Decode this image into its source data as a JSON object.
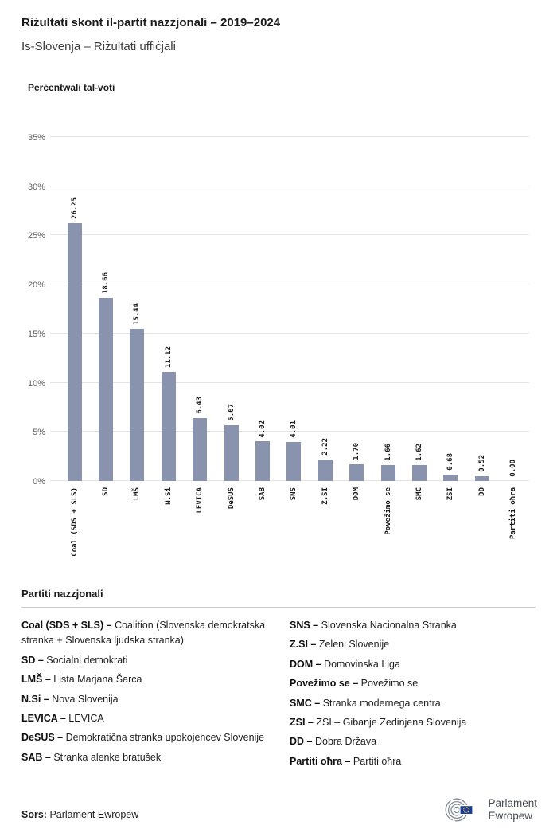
{
  "header": {
    "title": "Riżultati skont il-partit nazzjonali – 2019–2024",
    "subtitle": "Is-Slovenja – Riżultati uffiċjali"
  },
  "chart_data": {
    "type": "bar",
    "title": "Perċentwali tal-voti",
    "categories": [
      "Coal (SDS + SLS)",
      "SD",
      "LMŠ",
      "N.Si",
      "LEVICA",
      "DeSUS",
      "SAB",
      "SNS",
      "Z.SI",
      "DOM",
      "Povežimo se",
      "SMC",
      "ZSI",
      "DD",
      "Partiti oħra"
    ],
    "values": [
      26.25,
      18.66,
      15.44,
      11.12,
      6.43,
      5.67,
      4.02,
      4.01,
      2.22,
      1.7,
      1.66,
      1.62,
      0.68,
      0.52,
      0.0
    ],
    "value_labels": [
      "26.25",
      "18.66",
      "15.44",
      "11.12",
      "6.43",
      "5.67",
      "4.02",
      "4.01",
      "2.22",
      "1.70",
      "1.66",
      "1.62",
      "0.68",
      "0.52",
      "0.00"
    ],
    "ylim": [
      0,
      35
    ],
    "ytick_step": 5,
    "ytick_labels": [
      "0%",
      "5%",
      "10%",
      "15%",
      "20%",
      "25%",
      "30%",
      "35%"
    ],
    "grid": true,
    "legend_position": "none",
    "bar_color": "#8a93ad"
  },
  "legend": {
    "title": "Partiti nazzjonali",
    "columns": [
      [
        {
          "abbr": "Coal (SDS + SLS) –",
          "name": "Coalition (Slovenska demokratska stranka + Slovenska ljudska stranka)"
        },
        {
          "abbr": "SD –",
          "name": "Socialni demokrati"
        },
        {
          "abbr": "LMŠ –",
          "name": "Lista Marjana Šarca"
        },
        {
          "abbr": "N.Si –",
          "name": "Nova Slovenija"
        },
        {
          "abbr": "LEVICA –",
          "name": "LEVICA"
        },
        {
          "abbr": "DeSUS –",
          "name": "Demokratična stranka upokojencev Slovenije"
        },
        {
          "abbr": "SAB –",
          "name": "Stranka alenke bratušek"
        }
      ],
      [
        {
          "abbr": "SNS –",
          "name": "Slovenska Nacionalna Stranka"
        },
        {
          "abbr": "Z.SI –",
          "name": "Zeleni Slovenije"
        },
        {
          "abbr": "DOM –",
          "name": "Domovinska Liga"
        },
        {
          "abbr": "Povežimo se –",
          "name": "Povežimo se"
        },
        {
          "abbr": "SMC –",
          "name": "Stranka modernega centra"
        },
        {
          "abbr": "ZSI –",
          "name": "ZSI – Gibanje Zedinjena Slovenija"
        },
        {
          "abbr": "DD –",
          "name": "Dobra Država"
        },
        {
          "abbr": "Partiti oħra –",
          "name": "Partiti oħra"
        }
      ]
    ]
  },
  "footer": {
    "source_label": "Sors:",
    "source_value": "Parlament Ewropew"
  },
  "logo": {
    "line1": "Parlament",
    "line2": "Ewropew"
  }
}
